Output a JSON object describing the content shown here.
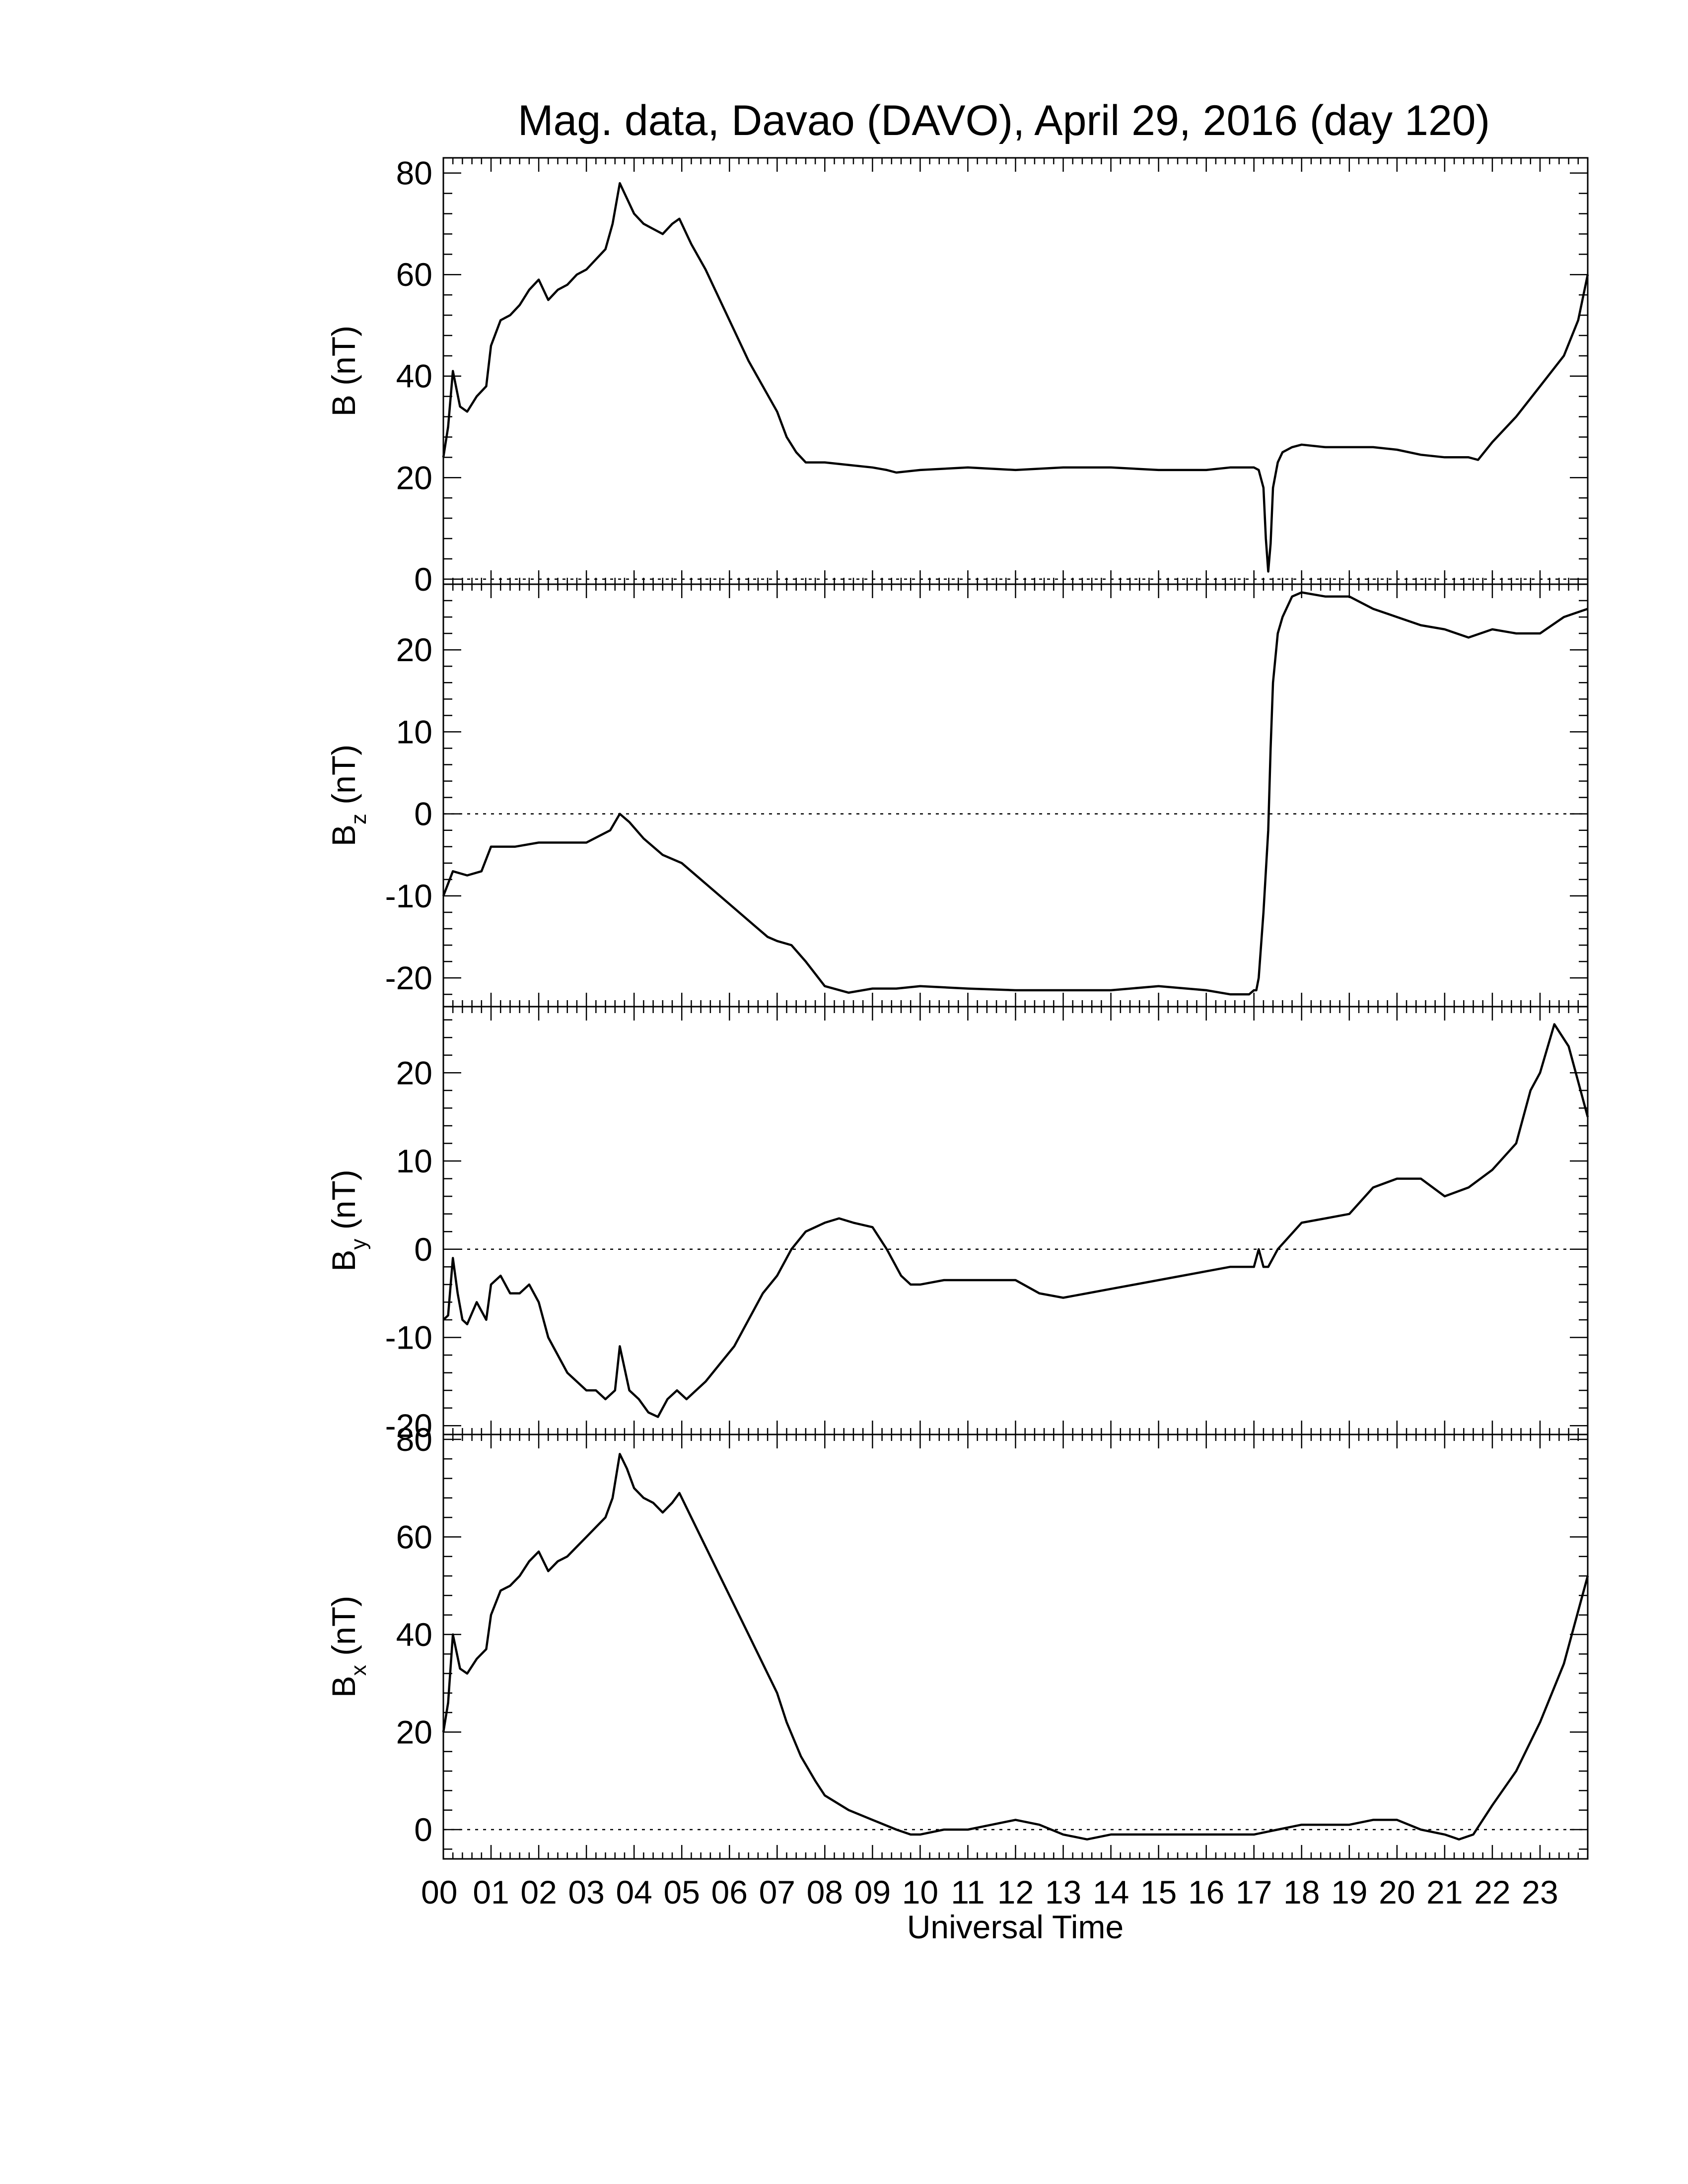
{
  "chart_data": {
    "type": "line",
    "title": "Mag. data, Davao (DAVO), April 29, 2016 (day 120)",
    "xlabel": "Universal Time",
    "xticks": [
      "00",
      "01",
      "02",
      "03",
      "04",
      "05",
      "06",
      "07",
      "08",
      "09",
      "10",
      "11",
      "12",
      "13",
      "14",
      "15",
      "16",
      "17",
      "18",
      "19",
      "20",
      "21",
      "22",
      "23"
    ],
    "xlim": [
      0,
      24
    ],
    "panels": [
      {
        "ylabel_main": "B",
        "ylabel_sub": "",
        "ylabel_unit": "(nT)",
        "ylim": [
          -1,
          83
        ],
        "yticks": [
          "0",
          "20",
          "40",
          "60",
          "80"
        ],
        "ytick_values": [
          0,
          20,
          40,
          60,
          80
        ],
        "zero_line": true,
        "series": [
          {
            "x": [
              0,
              0.1,
              0.2,
              0.35,
              0.5,
              0.7,
              0.9,
              1.0,
              1.2,
              1.4,
              1.6,
              1.8,
              2.0,
              2.2,
              2.4,
              2.6,
              2.8,
              3.0,
              3.2,
              3.4,
              3.55,
              3.7,
              3.85,
              4.0,
              4.2,
              4.4,
              4.6,
              4.8,
              4.95,
              5.2,
              5.5,
              5.8,
              6.1,
              6.4,
              6.7,
              7.0,
              7.2,
              7.4,
              7.6,
              8.0,
              8.5,
              9.0,
              9.3,
              9.5,
              10,
              11,
              12,
              13,
              14,
              15,
              16,
              16.5,
              17,
              17.1,
              17.2,
              17.25,
              17.3,
              17.35,
              17.4,
              17.5,
              17.6,
              17.8,
              18,
              18.5,
              19,
              19.5,
              20,
              20.5,
              21,
              21.5,
              21.7,
              22,
              22.5,
              23,
              23.5,
              23.8,
              24
            ],
            "y": [
              24,
              30,
              41,
              34,
              33,
              36,
              38,
              46,
              51,
              52,
              54,
              57,
              59,
              55,
              57,
              58,
              60,
              61,
              63,
              65,
              70,
              78,
              75,
              72,
              70,
              69,
              68,
              70,
              71,
              66,
              61,
              55,
              49,
              43,
              38,
              33,
              28,
              25,
              23,
              23,
              22.5,
              22,
              21.5,
              21,
              21.5,
              22,
              21.5,
              22,
              22,
              21.5,
              21.5,
              22,
              22,
              21.5,
              18,
              8,
              1.5,
              7,
              18,
              23,
              25,
              26,
              26.5,
              26,
              26,
              26,
              25.5,
              24.5,
              24,
              24,
              23.5,
              27,
              32,
              38,
              44,
              51,
              60
            ]
          }
        ]
      },
      {
        "ylabel_main": "B",
        "ylabel_sub": "z",
        "ylabel_unit": "(nT)",
        "ylim": [
          -23.5,
          28
        ],
        "yticks": [
          "-20",
          "-10",
          "0",
          "10",
          "20"
        ],
        "ytick_values": [
          -20,
          -10,
          0,
          10,
          20
        ],
        "zero_line": true,
        "series": [
          {
            "x": [
              0,
              0.2,
              0.5,
              0.8,
              1.0,
              1.5,
              2.0,
              2.5,
              3.0,
              3.5,
              3.7,
              3.9,
              4.2,
              4.6,
              5.0,
              5.5,
              6.0,
              6.5,
              6.8,
              7.0,
              7.3,
              7.6,
              8.0,
              8.5,
              9.0,
              9.5,
              10,
              11,
              12,
              13,
              14,
              15,
              16,
              16.5,
              16.9,
              17.0,
              17.05,
              17.1,
              17.2,
              17.3,
              17.35,
              17.4,
              17.5,
              17.6,
              17.8,
              18,
              18.5,
              19,
              19.5,
              20,
              20.5,
              21,
              21.5,
              22,
              22.5,
              23,
              23.5,
              24
            ],
            "y": [
              -10,
              -7,
              -7.5,
              -7,
              -4,
              -4,
              -3.5,
              -3.5,
              -3.5,
              -2,
              0,
              -1,
              -3,
              -5,
              -6,
              -8.5,
              -11,
              -13.5,
              -15,
              -15.5,
              -16,
              -18,
              -21,
              -21.8,
              -21.3,
              -21.3,
              -21,
              -21.3,
              -21.5,
              -21.5,
              -21.5,
              -21,
              -21.5,
              -22,
              -22,
              -21.5,
              -21.5,
              -20,
              -12,
              -2,
              8,
              16,
              22,
              24,
              26.5,
              27,
              26.5,
              26.5,
              25,
              24,
              23,
              22.5,
              21.5,
              22.5,
              22,
              22,
              24,
              25
            ]
          }
        ]
      },
      {
        "ylabel_main": "B",
        "ylabel_sub": "y",
        "ylabel_unit": "(nT)",
        "ylim": [
          -21,
          27.5
        ],
        "yticks": [
          "-20",
          "-10",
          "0",
          "10",
          "20"
        ],
        "ytick_values": [
          -20,
          -10,
          0,
          10,
          20
        ],
        "zero_line": true,
        "series": [
          {
            "x": [
              0,
              0.1,
              0.2,
              0.3,
              0.4,
              0.5,
              0.7,
              0.9,
              1.0,
              1.2,
              1.4,
              1.6,
              1.8,
              2.0,
              2.2,
              2.4,
              2.6,
              2.8,
              3.0,
              3.2,
              3.4,
              3.6,
              3.7,
              3.9,
              4.1,
              4.3,
              4.5,
              4.7,
              4.9,
              5.1,
              5.3,
              5.5,
              5.8,
              6.1,
              6.4,
              6.7,
              7.0,
              7.3,
              7.6,
              8.0,
              8.3,
              8.6,
              9.0,
              9.3,
              9.6,
              9.8,
              10,
              10.5,
              11,
              11.5,
              12,
              12.5,
              13,
              13.5,
              14,
              14.5,
              15,
              15.5,
              16,
              16.5,
              17,
              17.1,
              17.2,
              17.3,
              17.5,
              18,
              18.5,
              19,
              19.5,
              20,
              20.5,
              21,
              21.5,
              22,
              22.5,
              22.8,
              23,
              23.3,
              23.6,
              24
            ],
            "y": [
              -8,
              -7.5,
              -1,
              -5,
              -8,
              -8.5,
              -6,
              -8,
              -4,
              -3,
              -5,
              -5,
              -4,
              -6,
              -10,
              -12,
              -14,
              -15,
              -16,
              -16,
              -17,
              -16,
              -11,
              -16,
              -17,
              -18.5,
              -19,
              -17,
              -16,
              -17,
              -16,
              -15,
              -13,
              -11,
              -8,
              -5,
              -3,
              0,
              2,
              3,
              3.5,
              3,
              2.5,
              0,
              -3,
              -4,
              -4,
              -3.5,
              -3.5,
              -3.5,
              -3.5,
              -5,
              -5.5,
              -5,
              -4.5,
              -4,
              -3.5,
              -3,
              -2.5,
              -2,
              -2,
              0,
              -2,
              -2,
              0,
              3,
              3.5,
              4,
              7,
              8,
              8,
              6,
              7,
              9,
              12,
              18,
              20,
              25.5,
              23,
              15
            ]
          }
        ]
      },
      {
        "ylabel_main": "B",
        "ylabel_sub": "x",
        "ylabel_unit": "(nT)",
        "ylim": [
          -6,
          81
        ],
        "yticks": [
          "0",
          "20",
          "40",
          "60",
          "80"
        ],
        "ytick_values": [
          0,
          20,
          40,
          60,
          80
        ],
        "zero_line": true,
        "series": [
          {
            "x": [
              0,
              0.1,
              0.2,
              0.35,
              0.5,
              0.7,
              0.9,
              1.0,
              1.2,
              1.4,
              1.6,
              1.8,
              2.0,
              2.2,
              2.4,
              2.6,
              2.8,
              3.0,
              3.2,
              3.4,
              3.55,
              3.7,
              3.85,
              4.0,
              4.2,
              4.4,
              4.6,
              4.8,
              4.95,
              5.2,
              5.5,
              5.8,
              6.1,
              6.4,
              6.7,
              7.0,
              7.2,
              7.5,
              7.8,
              8.0,
              8.5,
              9.0,
              9.5,
              9.8,
              10,
              10.5,
              11,
              11.5,
              12,
              12.5,
              13,
              13.5,
              14,
              14.5,
              15,
              15.5,
              16,
              16.5,
              17,
              17.5,
              18,
              18.5,
              19,
              19.5,
              20,
              20.5,
              21,
              21.3,
              21.6,
              22,
              22.5,
              23,
              23.5,
              24
            ],
            "y": [
              20,
              26,
              40,
              33,
              32,
              35,
              37,
              44,
              49,
              50,
              52,
              55,
              57,
              53,
              55,
              56,
              58,
              60,
              62,
              64,
              68,
              77,
              74,
              70,
              68,
              67,
              65,
              67,
              69,
              64,
              58,
              52,
              46,
              40,
              34,
              28,
              22,
              15,
              10,
              7,
              4,
              2,
              0,
              -1,
              -1,
              0,
              0,
              1,
              2,
              1,
              -1,
              -2,
              -1,
              -1,
              -1,
              -1,
              -1,
              -1,
              -1,
              0,
              1,
              1,
              1,
              2,
              2,
              0,
              -1,
              -2,
              -1,
              5,
              12,
              22,
              34,
              52
            ]
          }
        ]
      }
    ]
  }
}
